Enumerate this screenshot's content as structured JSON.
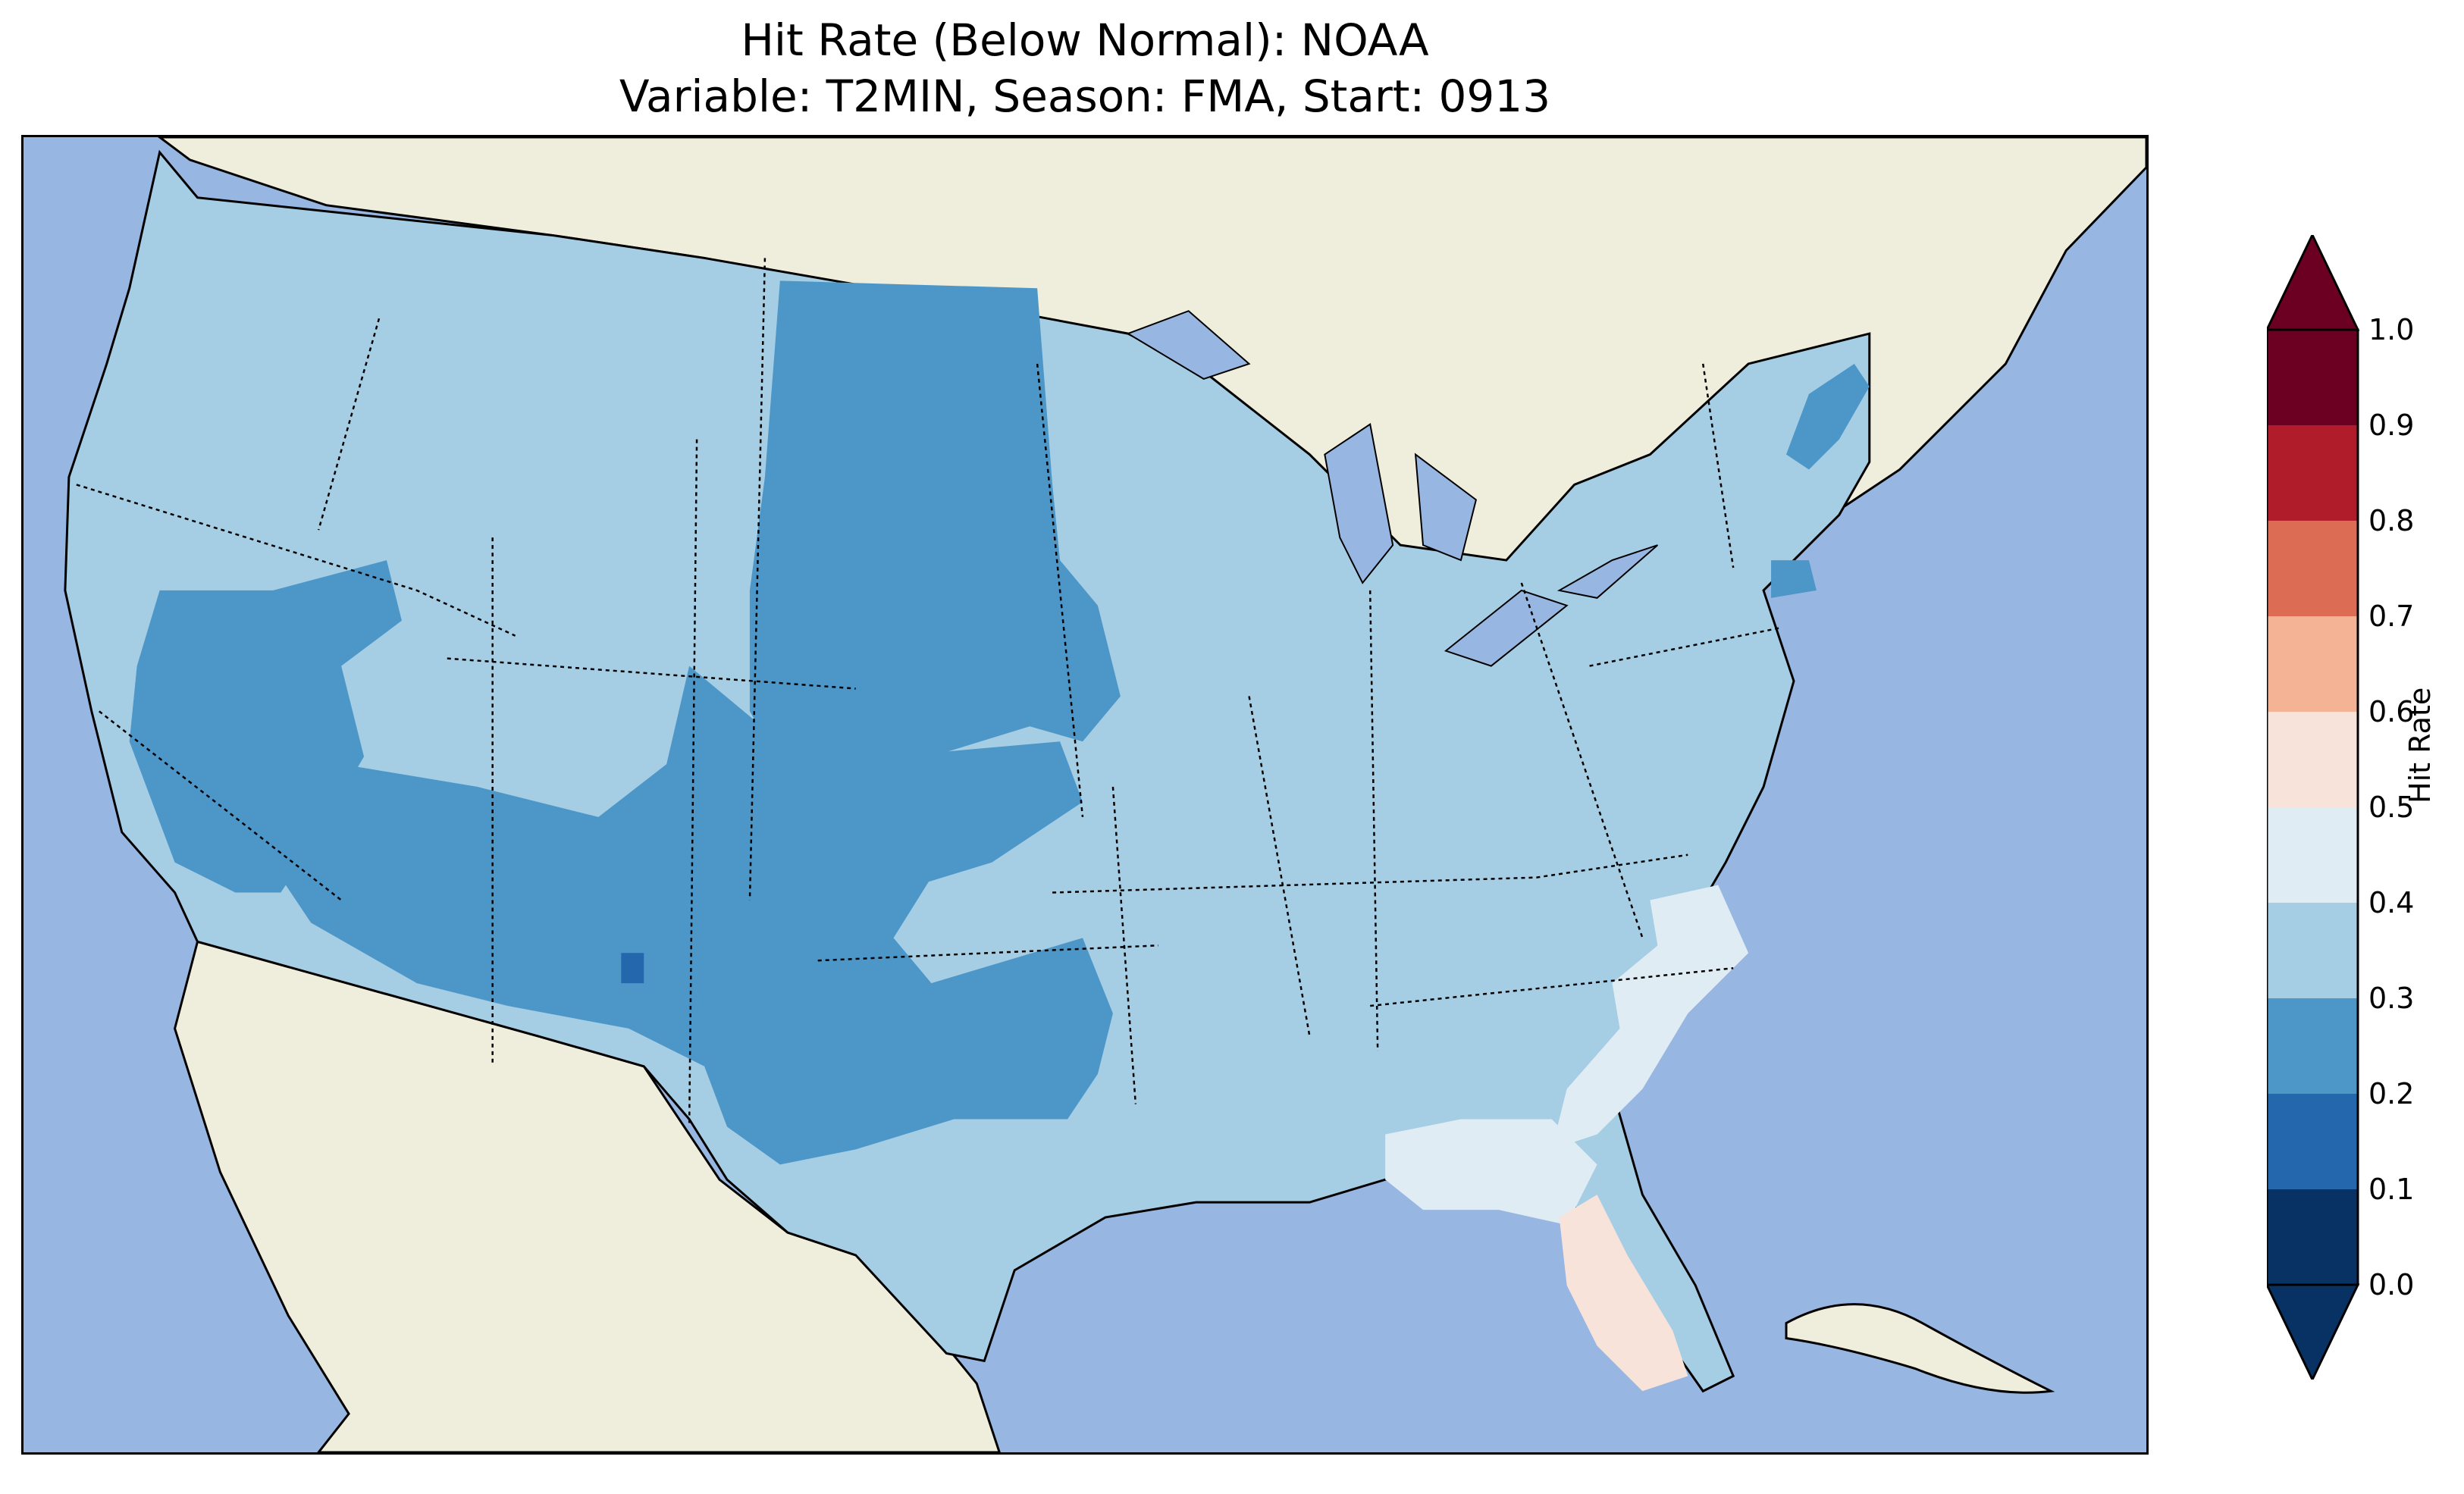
{
  "title": {
    "line1": "Hit Rate (Below Normal): NOAA",
    "line2": "Variable: T2MIN, Season: FMA, Start: 0913"
  },
  "map": {
    "ocean_color": "#97b6e1",
    "land_color": "#efeddb",
    "regions": [
      {
        "name": "west-coast-region",
        "class": "0.3-0.4"
      },
      {
        "name": "northern-plains-region",
        "class": "0.2-0.3"
      },
      {
        "name": "great-basin-region",
        "class": "0.2-0.3"
      },
      {
        "name": "southwest-region",
        "class": "0.2-0.3"
      },
      {
        "name": "central-plains-region",
        "class": "0.2-0.3"
      },
      {
        "name": "east-region",
        "class": "0.3-0.4"
      },
      {
        "name": "carolina-coast-region",
        "class": "0.4-0.5"
      },
      {
        "name": "georgia-north-florida-region",
        "class": "0.4-0.5"
      },
      {
        "name": "florida-region",
        "class": "0.5-0.6"
      },
      {
        "name": "new-england-coast-region",
        "class": "0.2-0.3"
      },
      {
        "name": "new-mexico-spot",
        "class": "0.1-0.2"
      }
    ]
  },
  "colorbar": {
    "label": "Hit Rate",
    "ticks": [
      "0.0",
      "0.1",
      "0.2",
      "0.3",
      "0.4",
      "0.5",
      "0.6",
      "0.7",
      "0.8",
      "0.9",
      "1.0"
    ],
    "colors": [
      "#073263",
      "#2467ad",
      "#4d96c8",
      "#a5cde3",
      "#e0ecf4",
      "#f8e3da",
      "#f5b395",
      "#dc6d54",
      "#b11c2b",
      "#6b0022"
    ]
  }
}
